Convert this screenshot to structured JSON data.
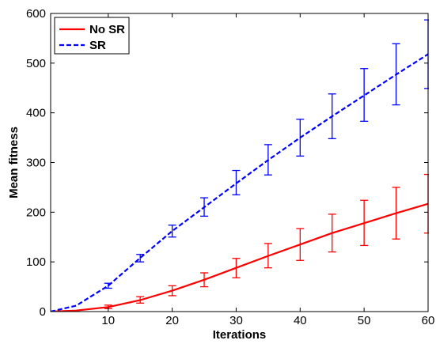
{
  "chart_data": {
    "type": "line",
    "title": "",
    "xlabel": "Iterations",
    "ylabel": "Mean fitness",
    "xlim": [
      1,
      60
    ],
    "ylim": [
      0,
      600
    ],
    "xticks": [
      10,
      20,
      30,
      40,
      50,
      60
    ],
    "yticks": [
      0,
      100,
      200,
      300,
      400,
      500,
      600
    ],
    "grid": false,
    "legend_position": "top-left",
    "series": [
      {
        "name": "No SR",
        "color": "#ff0000",
        "line_style": "solid",
        "x": [
          1,
          5,
          10,
          15,
          20,
          25,
          30,
          35,
          40,
          45,
          50,
          55,
          60
        ],
        "y": [
          0,
          2,
          9,
          23,
          42,
          64,
          88,
          112,
          135,
          158,
          178,
          198,
          217
        ],
        "error_x": [
          10,
          15,
          20,
          25,
          30,
          35,
          40,
          45,
          50,
          55,
          60
        ],
        "error_low": [
          6,
          17,
          32,
          50,
          68,
          88,
          103,
          120,
          133,
          146,
          158
        ],
        "error_high": [
          13,
          30,
          52,
          78,
          107,
          137,
          167,
          196,
          224,
          250,
          276
        ]
      },
      {
        "name": "SR",
        "color": "#0000ff",
        "line_style": "dashed",
        "x": [
          1,
          5,
          10,
          15,
          20,
          25,
          30,
          35,
          40,
          45,
          50,
          55,
          60
        ],
        "y": [
          0,
          12,
          52,
          108,
          162,
          210,
          258,
          305,
          350,
          393,
          435,
          477,
          518
        ],
        "error_x": [
          10,
          15,
          20,
          25,
          30,
          35,
          40,
          45,
          50,
          55,
          60
        ],
        "error_low": [
          47,
          100,
          150,
          192,
          235,
          275,
          313,
          348,
          383,
          416,
          449
        ],
        "error_high": [
          57,
          115,
          174,
          229,
          284,
          336,
          387,
          438,
          489,
          539,
          587
        ]
      }
    ]
  }
}
